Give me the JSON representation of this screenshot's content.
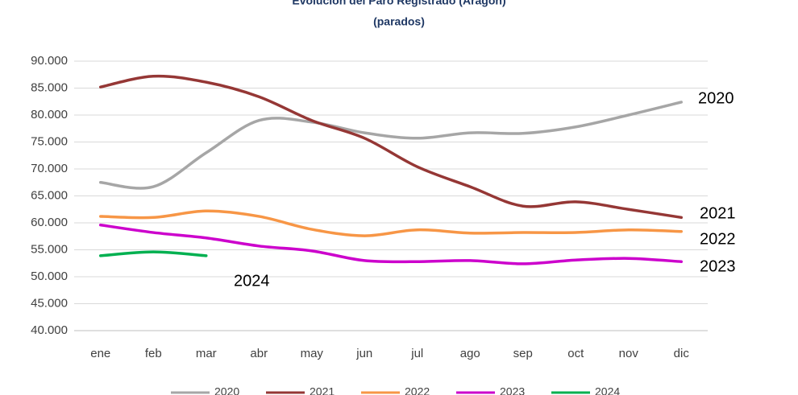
{
  "chart_data": {
    "type": "line",
    "title": "Evolución del Paro Registrado (Aragón)",
    "subtitle": "(parados)",
    "categories": [
      "ene",
      "feb",
      "mar",
      "abr",
      "may",
      "jun",
      "jul",
      "ago",
      "sep",
      "oct",
      "nov",
      "dic"
    ],
    "ylim": [
      40000,
      90000
    ],
    "yticks": [
      {
        "value": 40000,
        "label": "40.000"
      },
      {
        "value": 45000,
        "label": "45.000"
      },
      {
        "value": 50000,
        "label": "50.000"
      },
      {
        "value": 55000,
        "label": "55.000"
      },
      {
        "value": 60000,
        "label": "60.000"
      },
      {
        "value": 65000,
        "label": "65.000"
      },
      {
        "value": 70000,
        "label": "70.000"
      },
      {
        "value": 75000,
        "label": "75.000"
      },
      {
        "value": 80000,
        "label": "80.000"
      },
      {
        "value": 85000,
        "label": "85.000"
      },
      {
        "value": 90000,
        "label": "90.000"
      }
    ],
    "grid": true,
    "legend": "bottom",
    "series": [
      {
        "name": "2020",
        "color": "#a6a6a6",
        "values": [
          67500,
          66700,
          73000,
          79000,
          78700,
          76700,
          75700,
          76700,
          76600,
          77800,
          80000,
          82400
        ]
      },
      {
        "name": "2021",
        "color": "#953735",
        "values": [
          85200,
          87200,
          86100,
          83400,
          79000,
          75700,
          70400,
          66700,
          63100,
          63900,
          62500,
          61000
        ]
      },
      {
        "name": "2022",
        "color": "#f79646",
        "values": [
          61200,
          61000,
          62200,
          61200,
          58800,
          57600,
          58700,
          58100,
          58200,
          58200,
          58700,
          58400
        ]
      },
      {
        "name": "2023",
        "color": "#cc00cc",
        "values": [
          59600,
          58200,
          57200,
          55700,
          54800,
          53000,
          52800,
          53000,
          52400,
          53100,
          53400,
          52800
        ]
      },
      {
        "name": "2024",
        "color": "#00b050",
        "values": [
          53900,
          54600,
          53900,
          null,
          null,
          null,
          null,
          null,
          null,
          null,
          null,
          null
        ]
      }
    ]
  }
}
